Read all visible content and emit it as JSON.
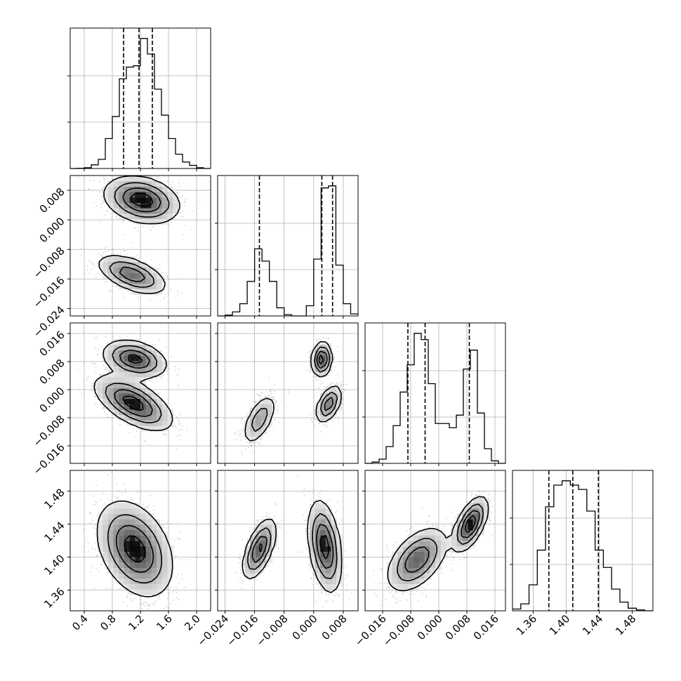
{
  "chart_data": {
    "type": "corner",
    "parameters": [
      {
        "range": [
          0.2,
          2.2
        ],
        "ticks": [
          0.4,
          0.8,
          1.2,
          1.6,
          2.0
        ],
        "tick_labels": [
          "0.4",
          "0.8",
          "1.2",
          "1.6",
          "2.0"
        ],
        "quantiles": [
          0.96,
          1.18,
          1.37
        ],
        "histogram": {
          "edges": [
            0.2,
            0.3,
            0.4,
            0.5,
            0.6,
            0.7,
            0.8,
            0.9,
            1.0,
            1.1,
            1.2,
            1.3,
            1.4,
            1.5,
            1.6,
            1.7,
            1.8,
            1.9,
            2.0,
            2.1,
            2.2
          ],
          "counts": [
            0,
            1,
            3,
            14,
            35,
            115,
            200,
            345,
            390,
            395,
            500,
            440,
            305,
            205,
            115,
            55,
            25,
            12,
            3,
            0
          ]
        }
      },
      {
        "range": [
          -0.026,
          0.012
        ],
        "ticks": [
          -0.024,
          -0.016,
          -0.008,
          0.0,
          0.008
        ],
        "tick_labels": [
          "−0.024",
          "−0.016",
          "−0.008",
          "0.000",
          "0.008"
        ],
        "quantiles": [
          -0.0147,
          0.0022,
          0.0051
        ],
        "histogram": {
          "edges": [
            -0.026,
            -0.024,
            -0.022,
            -0.02,
            -0.018,
            -0.016,
            -0.014,
            -0.012,
            -0.01,
            -0.008,
            -0.006,
            -0.004,
            -0.002,
            0.0,
            0.002,
            0.004,
            0.006,
            0.008,
            0.01,
            0.012
          ],
          "counts": [
            0,
            2,
            10,
            30,
            85,
            165,
            135,
            85,
            20,
            3,
            0,
            0,
            25,
            140,
            315,
            320,
            125,
            30,
            5
          ]
        }
      },
      {
        "range": [
          -0.021,
          0.019
        ],
        "ticks": [
          -0.016,
          -0.008,
          0.0,
          0.008,
          0.016
        ],
        "tick_labels": [
          "−0.016",
          "−0.008",
          "0.000",
          "0.008",
          "0.016"
        ],
        "quantiles": [
          -0.0088,
          -0.0039,
          0.0087
        ],
        "histogram": {
          "edges": [
            -0.021,
            -0.019,
            -0.017,
            -0.015,
            -0.013,
            -0.011,
            -0.009,
            -0.007,
            -0.005,
            -0.003,
            -0.001,
            0.001,
            0.003,
            0.005,
            0.007,
            0.009,
            0.011,
            0.013,
            0.015,
            0.017,
            0.019
          ],
          "counts": [
            0,
            3,
            10,
            40,
            90,
            170,
            235,
            310,
            295,
            190,
            95,
            95,
            85,
            115,
            225,
            270,
            120,
            35,
            6,
            0
          ]
        }
      },
      {
        "range": [
          1.335,
          1.505
        ],
        "ticks": [
          1.36,
          1.4,
          1.44,
          1.48
        ],
        "tick_labels": [
          "1.36",
          "1.40",
          "1.44",
          "1.48"
        ],
        "quantiles": [
          1.379,
          1.408,
          1.439
        ],
        "histogram": {
          "edges": [
            1.335,
            1.345,
            1.355,
            1.365,
            1.375,
            1.385,
            1.395,
            1.405,
            1.415,
            1.425,
            1.435,
            1.445,
            1.455,
            1.465,
            1.475,
            1.485,
            1.495,
            1.505
          ],
          "counts": [
            2,
            8,
            30,
            70,
            120,
            145,
            150,
            145,
            140,
            115,
            70,
            50,
            25,
            10,
            3,
            1,
            0
          ]
        }
      }
    ],
    "y_tick_labels_rows": [
      {
        "row": 1,
        "ticks": [
          -0.024,
          -0.016,
          -0.008,
          0.0,
          0.008
        ],
        "labels": [
          "−0.024",
          "−0.016",
          "−0.008",
          "0.000",
          "0.008"
        ]
      },
      {
        "row": 2,
        "ticks": [
          -0.016,
          -0.008,
          0.0,
          0.008,
          0.016
        ],
        "labels": [
          "−0.016",
          "−0.008",
          "0.000",
          "0.008",
          "0.016"
        ]
      },
      {
        "row": 3,
        "ticks": [
          1.36,
          1.4,
          1.44,
          1.48
        ],
        "labels": [
          "1.36",
          "1.40",
          "1.44",
          "1.48"
        ]
      }
    ],
    "modes_2d": [
      {
        "pair": [
          0,
          1
        ],
        "blobs": [
          {
            "mean": [
              1.22,
              0.0054
            ],
            "sd": [
              0.26,
              0.0031
            ],
            "rho": -0.25,
            "weight": 0.62
          },
          {
            "mean": [
              1.08,
              -0.0148
            ],
            "sd": [
              0.24,
              0.0026
            ],
            "rho": -0.55,
            "weight": 0.38
          }
        ]
      },
      {
        "pair": [
          0,
          2
        ],
        "blobs": [
          {
            "mean": [
              1.12,
              0.0087
            ],
            "sd": [
              0.22,
              0.0026
            ],
            "rho": -0.3,
            "weight": 0.35
          },
          {
            "mean": [
              1.1,
              -0.0038
            ],
            "sd": [
              0.27,
              0.0038
            ],
            "rho": -0.6,
            "weight": 0.65
          }
        ]
      },
      {
        "pair": [
          0,
          3
        ],
        "blobs": [
          {
            "mean": [
              1.12,
              1.41
            ],
            "sd": [
              0.26,
              0.028
            ],
            "rho": -0.35,
            "weight": 1.0
          }
        ]
      },
      {
        "pair": [
          1,
          2
        ],
        "blobs": [
          {
            "mean": [
              -0.0147,
              -0.0085
            ],
            "sd": [
              0.0022,
              0.0035
            ],
            "rho": 0.6,
            "weight": 0.38
          },
          {
            "mean": [
              0.0022,
              0.0086
            ],
            "sd": [
              0.0013,
              0.0024
            ],
            "rho": 0.1,
            "weight": 0.3
          },
          {
            "mean": [
              0.0041,
              -0.0041
            ],
            "sd": [
              0.0017,
              0.0026
            ],
            "rho": 0.5,
            "weight": 0.32
          }
        ]
      },
      {
        "pair": [
          1,
          3
        ],
        "blobs": [
          {
            "mean": [
              -0.0147,
              1.41
            ],
            "sd": [
              0.0022,
              0.018
            ],
            "rho": 0.6,
            "weight": 0.38
          },
          {
            "mean": [
              0.003,
              1.413
            ],
            "sd": [
              0.0022,
              0.027
            ],
            "rho": -0.35,
            "weight": 0.62
          }
        ]
      },
      {
        "pair": [
          2,
          3
        ],
        "blobs": [
          {
            "mean": [
              -0.0062,
              1.397
            ],
            "sd": [
              0.0042,
              0.019
            ],
            "rho": 0.5,
            "weight": 0.62
          },
          {
            "mean": [
              0.009,
              1.44
            ],
            "sd": [
              0.0024,
              0.016
            ],
            "rho": 0.6,
            "weight": 0.38
          }
        ]
      }
    ],
    "grid": true,
    "quantile_line_style": "dashed",
    "contour_color": "#000000",
    "point_color": "#7f7f7f"
  }
}
